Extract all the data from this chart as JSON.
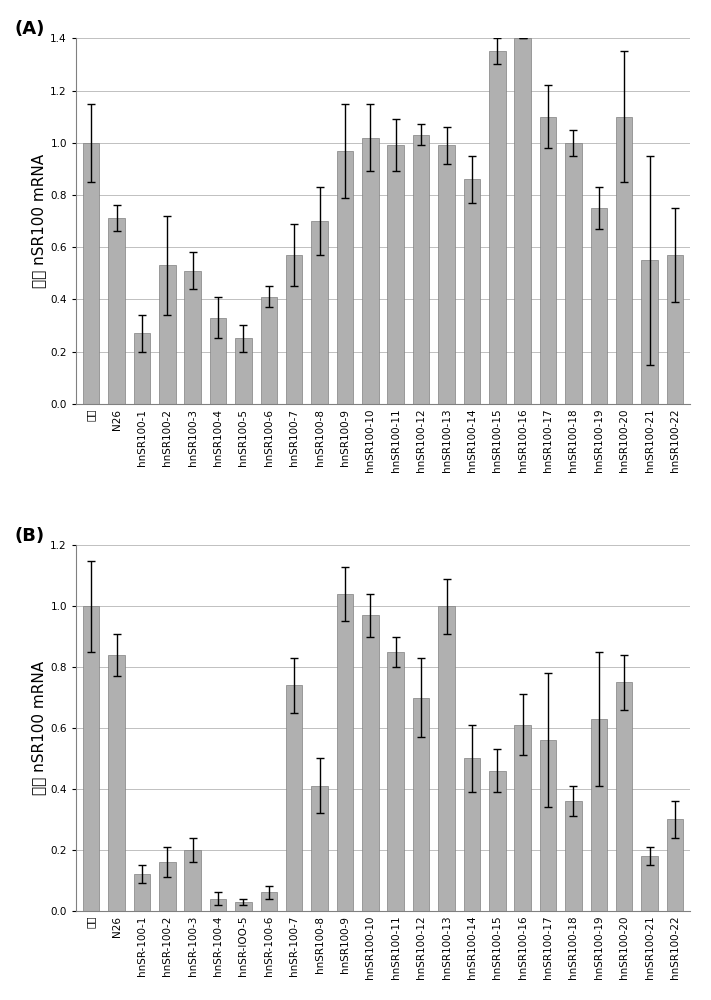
{
  "chart_A": {
    "label": "(A)",
    "categories": [
      "対照",
      "N26",
      "hnSR100-1",
      "hnSR100-2",
      "hnSR100-3",
      "hnSR100-4",
      "hnSR100-5",
      "hnSR100-6",
      "hnSR100-7",
      "hnSR100-8",
      "hnSR100-9",
      "hnSR100-10",
      "hnSR100-11",
      "hnSR100-12",
      "hnSR100-13",
      "hnSR100-14",
      "hnSR100-15",
      "hnSR100-16",
      "hnSR100-17",
      "hnSR100-18",
      "hnSR100-19",
      "hnSR100-20",
      "hnSR100-21",
      "hnSR100-22"
    ],
    "values": [
      1.0,
      0.71,
      0.27,
      0.53,
      0.51,
      0.33,
      0.25,
      0.41,
      0.57,
      0.7,
      0.97,
      1.02,
      0.99,
      1.03,
      0.99,
      0.86,
      1.35,
      1.4,
      1.1,
      1.0,
      0.75,
      1.1,
      0.55,
      0.57
    ],
    "errors": [
      0.15,
      0.05,
      0.07,
      0.19,
      0.07,
      0.08,
      0.05,
      0.04,
      0.12,
      0.13,
      0.18,
      0.13,
      0.1,
      0.04,
      0.07,
      0.09,
      0.05,
      0.0,
      0.12,
      0.05,
      0.08,
      0.25,
      0.4,
      0.18
    ],
    "ylabel": "相対 nSR100 mRNA",
    "ylim": [
      0,
      1.4
    ],
    "yticks": [
      0,
      0.2,
      0.4,
      0.6,
      0.8,
      1.0,
      1.2,
      1.4
    ]
  },
  "chart_B": {
    "label": "(B)",
    "categories": [
      "対照",
      "N26",
      "hnSR-100-1",
      "hnSR-100-2",
      "hnSR-100-3",
      "hnSR-100-4",
      "hnSR-lOO-5",
      "hnSR-100-6",
      "hnSR-100-7",
      "hnSR100-8",
      "hnSR100-9",
      "hnSR100-10",
      "hnSR100-11",
      "hnSR100-12",
      "hnSR100-13",
      "hnSR100-14",
      "hnSR100-15",
      "hnSR100-16",
      "hnSR100-17",
      "hnSR100-18",
      "hnSR100-19",
      "hnSR100-20",
      "hnSR100-21",
      "hnSR100-22"
    ],
    "values": [
      1.0,
      0.84,
      0.12,
      0.16,
      0.2,
      0.04,
      0.03,
      0.06,
      0.74,
      0.41,
      1.04,
      0.97,
      0.85,
      0.7,
      1.0,
      0.5,
      0.46,
      0.61,
      0.56,
      0.36,
      0.63,
      0.75,
      0.18,
      0.3
    ],
    "errors": [
      0.15,
      0.07,
      0.03,
      0.05,
      0.04,
      0.02,
      0.01,
      0.02,
      0.09,
      0.09,
      0.09,
      0.07,
      0.05,
      0.13,
      0.09,
      0.11,
      0.07,
      0.1,
      0.22,
      0.05,
      0.22,
      0.09,
      0.03,
      0.06
    ],
    "ylabel": "相対 nSR100 mRNA",
    "ylim": [
      0,
      1.2
    ],
    "yticks": [
      0,
      0.2,
      0.4,
      0.6,
      0.8,
      1.0,
      1.2
    ]
  },
  "bar_color": "#b0b0b0",
  "bar_edge_color": "#808080",
  "error_color": "black",
  "background_color": "#ffffff",
  "tick_labelsize": 7.5,
  "ylabel_fontsize": 11,
  "panel_label_fontsize": 13
}
